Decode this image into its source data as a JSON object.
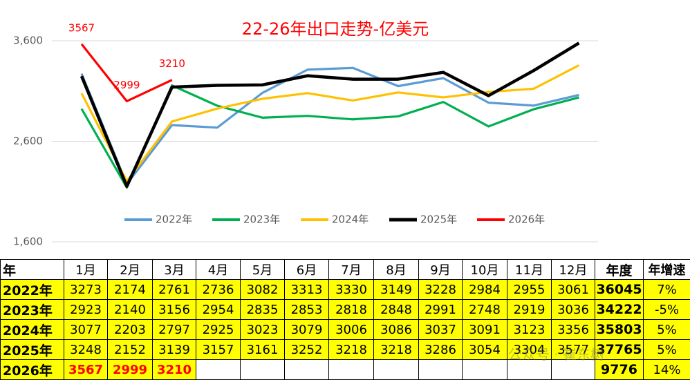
{
  "chart_data": {
    "type": "line",
    "title": "22-26年出口走势-亿美元",
    "categories": [
      null,
      null,
      null,
      null,
      null,
      null,
      null,
      null,
      null,
      null,
      null,
      null
    ],
    "ylim": [
      1600,
      3600
    ],
    "yticks": [
      {
        "value": 1600,
        "label": "1,600"
      },
      {
        "value": 2600,
        "label": "2,600"
      },
      {
        "value": 3600,
        "label": "3,600"
      }
    ],
    "grid": true,
    "legend": "bottom",
    "series": [
      {
        "name": "2022年",
        "color": "#5b9bd5",
        "values": [
          3273,
          2174,
          2761,
          2736,
          3082,
          3313,
          3330,
          3149,
          3228,
          2984,
          2955,
          3061
        ]
      },
      {
        "name": "2023年",
        "color": "#00b050",
        "values": [
          2923,
          2140,
          3156,
          2954,
          2835,
          2853,
          2818,
          2848,
          2991,
          2748,
          2919,
          3036
        ]
      },
      {
        "name": "2024年",
        "color": "#ffc000",
        "values": [
          3077,
          2203,
          2797,
          2925,
          3023,
          3079,
          3006,
          3086,
          3037,
          3091,
          3123,
          3356
        ]
      },
      {
        "name": "2025年",
        "color": "#000000",
        "values": [
          3248,
          2152,
          3139,
          3157,
          3161,
          3252,
          3218,
          3218,
          3286,
          3054,
          3304,
          3577
        ]
      },
      {
        "name": "2026年",
        "color": "#ff0000",
        "data_labels": true,
        "values": [
          3567,
          2999,
          3210,
          null,
          null,
          null,
          null,
          null,
          null,
          null,
          null,
          null
        ]
      }
    ]
  },
  "table": {
    "header": [
      "年",
      "1月",
      "2月",
      "3月",
      "4月",
      "5月",
      "6月",
      "7月",
      "8月",
      "9月",
      "10月",
      "11月",
      "12月",
      "年度",
      "年增速"
    ],
    "rows": [
      [
        "2022年",
        3273,
        2174,
        2761,
        2736,
        3082,
        3313,
        3330,
        3149,
        3228,
        2984,
        2955,
        3061,
        36045,
        "7%"
      ],
      [
        "2023年",
        2923,
        2140,
        3156,
        2954,
        2835,
        2853,
        2818,
        2848,
        2991,
        2748,
        2919,
        3036,
        34222,
        "-5%"
      ],
      [
        "2024年",
        3077,
        2203,
        2797,
        2925,
        3023,
        3079,
        3006,
        3086,
        3037,
        3091,
        3123,
        3356,
        35803,
        "5%"
      ],
      [
        "2025年",
        3248,
        2152,
        3139,
        3157,
        3161,
        3252,
        3218,
        3218,
        3286,
        3054,
        3304,
        3577,
        37765,
        "5%"
      ],
      [
        "2026年",
        3567,
        2999,
        3210,
        null,
        null,
        null,
        null,
        null,
        null,
        null,
        null,
        null,
        9776,
        "14%"
      ]
    ]
  },
  "watermark": "公众号 · 崔东树"
}
